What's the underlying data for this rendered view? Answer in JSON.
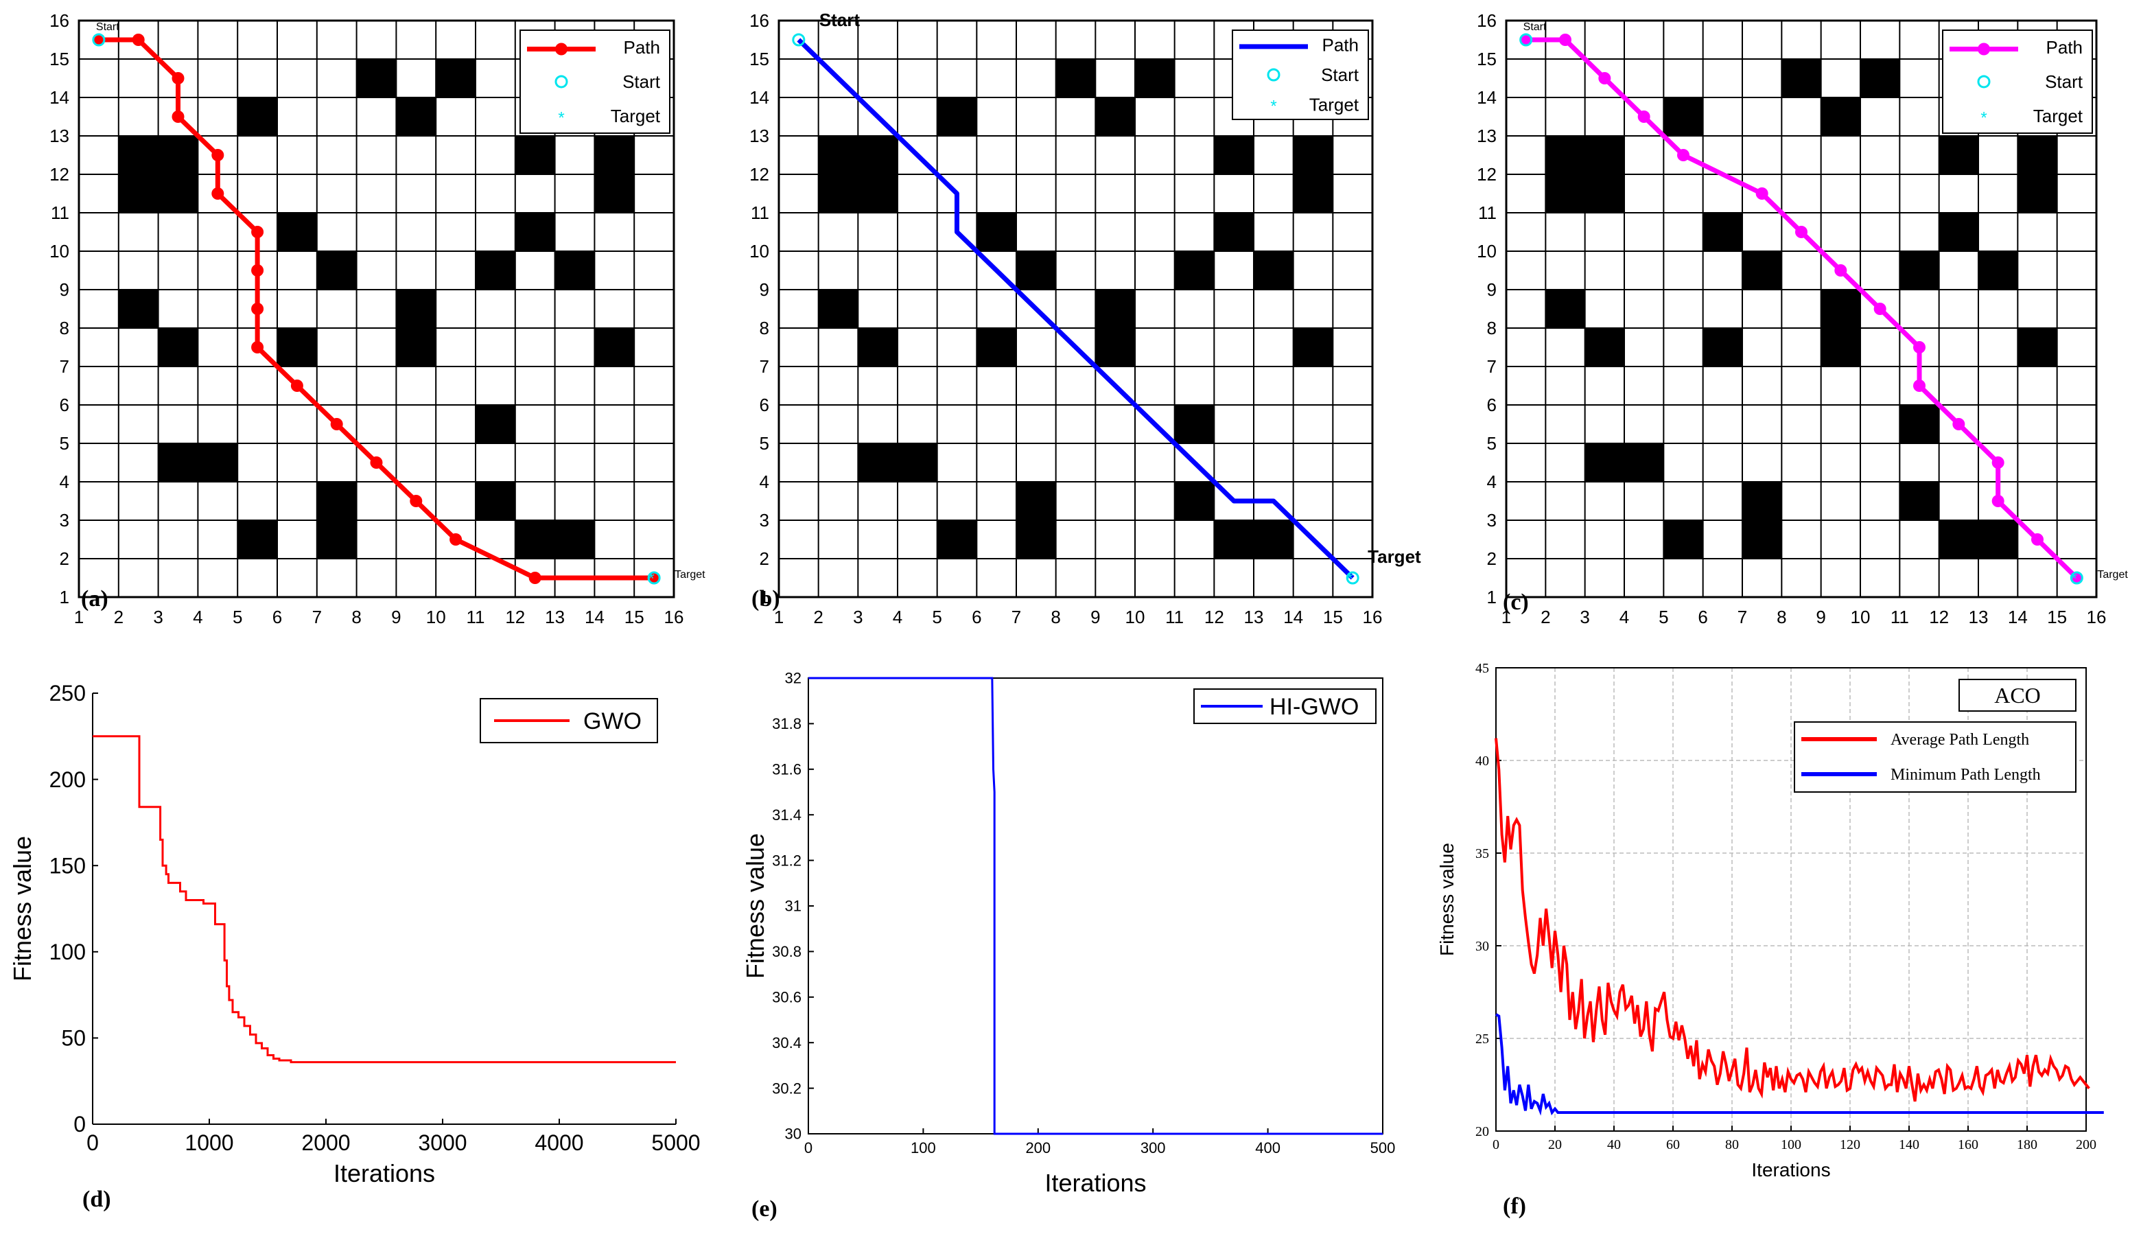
{
  "chart_data": [
    {
      "id": "a",
      "type": "grid_path",
      "panel_label": "(a)",
      "xlim": [
        1,
        16
      ],
      "ylim": [
        1,
        16
      ],
      "ticks": [
        1,
        2,
        3,
        4,
        5,
        6,
        7,
        8,
        9,
        10,
        11,
        12,
        13,
        14,
        15,
        16
      ],
      "obstacles": [
        [
          2,
          11,
          2,
          2
        ],
        [
          8,
          14,
          1,
          1
        ],
        [
          10,
          14,
          1,
          1
        ],
        [
          5,
          13,
          1,
          1
        ],
        [
          9,
          13,
          1,
          1
        ],
        [
          12,
          12,
          1,
          1
        ],
        [
          14,
          11,
          1,
          2
        ],
        [
          6,
          10,
          1,
          1
        ],
        [
          12,
          10,
          1,
          1
        ],
        [
          7,
          9,
          1,
          1
        ],
        [
          11,
          9,
          1,
          1
        ],
        [
          13,
          9,
          1,
          1
        ],
        [
          2,
          8,
          1,
          1
        ],
        [
          9,
          7,
          1,
          2
        ],
        [
          3,
          7,
          1,
          1
        ],
        [
          6,
          7,
          1,
          1
        ],
        [
          14,
          7,
          1,
          1
        ],
        [
          11,
          5,
          1,
          1
        ],
        [
          3,
          4,
          2,
          1
        ],
        [
          7,
          2,
          1,
          2
        ],
        [
          11,
          3,
          1,
          1
        ],
        [
          5,
          2,
          1,
          1
        ],
        [
          12,
          2,
          2,
          1
        ]
      ],
      "path": [
        [
          1.5,
          15.5
        ],
        [
          2.5,
          15.5
        ],
        [
          3.5,
          14.5
        ],
        [
          3.5,
          13.5
        ],
        [
          4.5,
          12.5
        ],
        [
          4.5,
          11.5
        ],
        [
          5.5,
          10.5
        ],
        [
          5.5,
          9.5
        ],
        [
          5.5,
          8.5
        ],
        [
          5.5,
          7.5
        ],
        [
          6.5,
          6.5
        ],
        [
          7.5,
          5.5
        ],
        [
          8.5,
          4.5
        ],
        [
          9.5,
          3.5
        ],
        [
          10.5,
          2.5
        ],
        [
          12.5,
          1.5
        ],
        [
          15.5,
          1.5
        ]
      ],
      "path_color": "#ff0000",
      "markers": true,
      "start": [
        1.5,
        15.5
      ],
      "target": [
        15.5,
        1.5
      ],
      "start_label": "Start",
      "target_label": "Target",
      "legend": [
        "Path",
        "Start",
        "Target"
      ]
    },
    {
      "id": "b",
      "type": "grid_path",
      "panel_label": "(b)",
      "xlim": [
        1,
        16
      ],
      "ylim": [
        1,
        16
      ],
      "ticks": [
        1,
        2,
        3,
        4,
        5,
        6,
        7,
        8,
        9,
        10,
        11,
        12,
        13,
        14,
        15,
        16
      ],
      "obstacles": [
        [
          2,
          11,
          2,
          2
        ],
        [
          8,
          14,
          1,
          1
        ],
        [
          10,
          14,
          1,
          1
        ],
        [
          5,
          13,
          1,
          1
        ],
        [
          9,
          13,
          1,
          1
        ],
        [
          12,
          12,
          1,
          1
        ],
        [
          14,
          11,
          1,
          2
        ],
        [
          6,
          10,
          1,
          1
        ],
        [
          12,
          10,
          1,
          1
        ],
        [
          7,
          9,
          1,
          1
        ],
        [
          11,
          9,
          1,
          1
        ],
        [
          13,
          9,
          1,
          1
        ],
        [
          2,
          8,
          1,
          1
        ],
        [
          9,
          7,
          1,
          2
        ],
        [
          3,
          7,
          1,
          1
        ],
        [
          6,
          7,
          1,
          1
        ],
        [
          14,
          7,
          1,
          1
        ],
        [
          11,
          5,
          1,
          1
        ],
        [
          3,
          4,
          2,
          1
        ],
        [
          7,
          2,
          1,
          2
        ],
        [
          11,
          3,
          1,
          1
        ],
        [
          5,
          2,
          1,
          1
        ],
        [
          12,
          2,
          2,
          1
        ]
      ],
      "path": [
        [
          1.5,
          15.5
        ],
        [
          5.5,
          11.5
        ],
        [
          5.5,
          10.5
        ],
        [
          12.5,
          3.5
        ],
        [
          13.5,
          3.5
        ],
        [
          15.5,
          1.5
        ]
      ],
      "path_color": "#0000ff",
      "markers": false,
      "start": [
        1.5,
        15.5
      ],
      "target": [
        15.5,
        1.5
      ],
      "start_label": "Start",
      "target_label": "Target",
      "legend": [
        "Path",
        "Start",
        "Target"
      ]
    },
    {
      "id": "c",
      "type": "grid_path",
      "panel_label": "(c)",
      "xlim": [
        1,
        16
      ],
      "ylim": [
        1,
        16
      ],
      "ticks": [
        1,
        2,
        3,
        4,
        5,
        6,
        7,
        8,
        9,
        10,
        11,
        12,
        13,
        14,
        15,
        16
      ],
      "obstacles": [
        [
          2,
          11,
          2,
          2
        ],
        [
          8,
          14,
          1,
          1
        ],
        [
          10,
          14,
          1,
          1
        ],
        [
          5,
          13,
          1,
          1
        ],
        [
          9,
          13,
          1,
          1
        ],
        [
          12,
          12,
          1,
          1
        ],
        [
          14,
          11,
          1,
          2
        ],
        [
          6,
          10,
          1,
          1
        ],
        [
          12,
          10,
          1,
          1
        ],
        [
          7,
          9,
          1,
          1
        ],
        [
          11,
          9,
          1,
          1
        ],
        [
          13,
          9,
          1,
          1
        ],
        [
          2,
          8,
          1,
          1
        ],
        [
          9,
          7,
          1,
          2
        ],
        [
          3,
          7,
          1,
          1
        ],
        [
          6,
          7,
          1,
          1
        ],
        [
          14,
          7,
          1,
          1
        ],
        [
          11,
          5,
          1,
          1
        ],
        [
          3,
          4,
          2,
          1
        ],
        [
          7,
          2,
          1,
          2
        ],
        [
          11,
          3,
          1,
          1
        ],
        [
          5,
          2,
          1,
          1
        ],
        [
          12,
          2,
          2,
          1
        ]
      ],
      "path": [
        [
          1.5,
          15.5
        ],
        [
          2.5,
          15.5
        ],
        [
          3.5,
          14.5
        ],
        [
          4.5,
          13.5
        ],
        [
          5.5,
          12.5
        ],
        [
          7.5,
          11.5
        ],
        [
          8.5,
          10.5
        ],
        [
          9.5,
          9.5
        ],
        [
          10.5,
          8.5
        ],
        [
          11.5,
          7.5
        ],
        [
          11.5,
          6.5
        ],
        [
          12.5,
          5.5
        ],
        [
          13.5,
          4.5
        ],
        [
          13.5,
          3.5
        ],
        [
          14.5,
          2.5
        ],
        [
          15.5,
          1.5
        ]
      ],
      "path_color": "#ff00ff",
      "markers": true,
      "start": [
        1.5,
        15.5
      ],
      "target": [
        15.5,
        1.5
      ],
      "start_label": "Start",
      "target_label": "Target",
      "legend": [
        "Path",
        "Start",
        "Target"
      ]
    },
    {
      "id": "d",
      "type": "line",
      "panel_label": "(d)",
      "xlabel": "Iterations",
      "ylabel": "Fitness value",
      "xlim": [
        0,
        5000
      ],
      "ylim": [
        0,
        250
      ],
      "xticks": [
        0,
        1000,
        2000,
        3000,
        4000,
        5000
      ],
      "yticks": [
        0,
        50,
        100,
        150,
        200,
        250
      ],
      "legend_label": "GWO",
      "series": [
        {
          "name": "GWO",
          "color": "#ff0000",
          "x": [
            0,
            400,
            400,
            580,
            580,
            600,
            630,
            650,
            700,
            750,
            800,
            850,
            950,
            1050,
            1100,
            1130,
            1150,
            1170,
            1200,
            1250,
            1300,
            1350,
            1400,
            1450,
            1500,
            1550,
            1600,
            1700,
            5000
          ],
          "y": [
            225,
            225,
            184,
            184,
            165,
            150,
            145,
            140,
            140,
            135,
            130,
            130,
            128,
            116,
            116,
            95,
            80,
            72,
            65,
            62,
            57,
            52,
            47,
            44,
            40,
            38,
            37,
            36,
            36
          ]
        }
      ]
    },
    {
      "id": "e",
      "type": "line",
      "panel_label": "(e)",
      "xlabel": "Iterations",
      "ylabel": "Fitness value",
      "xlim": [
        0,
        500
      ],
      "ylim": [
        30,
        32
      ],
      "xticks": [
        0,
        100,
        200,
        300,
        400,
        500
      ],
      "yticks": [
        30,
        30.2,
        30.4,
        30.6,
        30.8,
        31,
        31.2,
        31.4,
        31.6,
        31.8,
        32
      ],
      "legend_label": "HI-GWO",
      "series": [
        {
          "name": "HI-GWO",
          "color": "#0000ff",
          "x": [
            0,
            160,
            161,
            162,
            162,
            500
          ],
          "y": [
            32,
            32,
            31.6,
            31.5,
            30,
            30
          ]
        }
      ]
    },
    {
      "id": "f",
      "type": "line",
      "panel_label": "(f)",
      "xlabel": "Iterations",
      "ylabel": "Fitness value",
      "title_box": "ACO",
      "xlim": [
        0,
        200
      ],
      "ylim": [
        20,
        45
      ],
      "xticks": [
        0,
        20,
        40,
        60,
        80,
        100,
        120,
        140,
        160,
        180,
        200
      ],
      "yticks": [
        20,
        25,
        30,
        35,
        40,
        45
      ],
      "grid": true,
      "series": [
        {
          "name": "Average Path Length",
          "color": "#ff0000",
          "y": [
            41.2,
            39.5,
            36,
            34.5,
            37,
            35.2,
            36.5,
            36.8,
            36.5,
            33,
            31.5,
            30.2,
            29,
            28.5,
            29.5,
            31.5,
            30,
            32,
            30.5,
            28.8,
            30.8,
            29.5,
            27.5,
            30,
            29,
            26,
            27.5,
            25.5,
            26.5,
            28.2,
            25,
            26.2,
            27,
            24.8,
            26.5,
            27.8,
            26,
            25.2,
            28,
            27,
            26.5,
            26.2,
            27.5,
            27.9,
            26.6,
            26.8,
            27.3,
            25.8,
            26.8,
            25.1,
            25.5,
            27,
            25.2,
            24.3,
            26.6,
            26.5,
            27,
            27.5,
            26,
            25.1,
            25,
            25.9,
            24.9,
            25.7,
            25,
            23.9,
            24.6,
            23.5,
            24.9,
            22.8,
            23.6,
            23.2,
            24.4,
            23.8,
            23.5,
            22.5,
            23.1,
            24.3,
            23.6,
            22.7,
            23.3,
            23.9,
            22.5,
            22.3,
            23.1,
            24.5,
            22.1,
            22.5,
            23.3,
            22.3,
            22,
            23.7,
            22.9,
            23.4,
            22.2,
            23.5,
            22.3,
            22.8,
            22.1,
            23.2,
            22.8,
            22.6,
            23,
            23.1,
            22.8,
            22.1,
            23.2,
            22.9,
            22.6,
            22.4,
            23.2,
            23.5,
            22.3,
            22.9,
            23.2,
            22.4,
            22.5,
            22.7,
            23.4,
            22.2,
            22.3,
            23.3,
            23.6,
            23.2,
            23.4,
            22.7,
            23.2,
            22.7,
            22.4,
            23.4,
            23.2,
            23,
            22.3,
            22.5,
            22.5,
            23.6,
            22.1,
            23.1,
            22.8,
            22.3,
            23.5,
            22.5,
            21.6,
            23.1,
            22.2,
            22.5,
            22.2,
            22.8,
            22.3,
            23.2,
            23.3,
            22.8,
            22,
            23.5,
            23.3,
            22.2,
            22.3,
            22.6,
            23,
            22.3,
            22.4,
            22.3,
            22.8,
            23.5,
            22.4,
            22.1,
            23,
            23.1,
            23.3,
            22.3,
            23.3,
            22.7,
            22.6,
            23.1,
            23.5,
            22.7,
            22.9,
            23.8,
            23.6,
            23.1,
            24.1,
            22.4,
            23.5,
            24.1,
            23.2,
            23,
            23.3,
            23.1,
            23.9,
            23.5,
            23.3,
            22.8,
            23,
            23.5,
            23.4,
            22.8,
            22.5,
            22.7,
            22.9,
            22.7,
            22.5,
            22.3
          ]
        },
        {
          "name": "Minimum Path Length",
          "color": "#0000ff",
          "y": [
            26.3,
            26.2,
            24.5,
            22.2,
            23.5,
            21.5,
            22.2,
            21.4,
            22.5,
            21.9,
            21.1,
            22.5,
            21.2,
            21.6,
            21.5,
            21.1,
            22,
            21.3,
            21.5,
            21,
            21.2,
            21,
            21,
            21,
            21,
            21,
            21,
            21,
            21,
            21,
            21,
            21,
            21,
            21,
            21,
            21,
            21,
            21,
            21,
            21,
            21,
            21,
            21,
            21,
            21,
            21,
            21,
            21,
            21,
            21,
            21,
            21,
            21,
            21,
            21,
            21,
            21,
            21,
            21,
            21,
            21,
            21,
            21,
            21,
            21,
            21,
            21,
            21,
            21,
            21,
            21,
            21,
            21,
            21,
            21,
            21,
            21,
            21,
            21,
            21,
            21,
            21,
            21,
            21,
            21,
            21,
            21,
            21,
            21,
            21,
            21,
            21,
            21,
            21,
            21,
            21,
            21,
            21,
            21,
            21,
            21,
            21,
            21,
            21,
            21,
            21,
            21,
            21,
            21,
            21,
            21,
            21,
            21,
            21,
            21,
            21,
            21,
            21,
            21,
            21,
            21,
            21,
            21,
            21,
            21,
            21,
            21,
            21,
            21,
            21,
            21,
            21,
            21,
            21,
            21,
            21,
            21,
            21,
            21,
            21,
            21,
            21,
            21,
            21,
            21,
            21,
            21,
            21,
            21,
            21,
            21,
            21,
            21,
            21,
            21,
            21,
            21,
            21,
            21,
            21,
            21,
            21,
            21,
            21,
            21,
            21,
            21,
            21,
            21,
            21,
            21,
            21,
            21,
            21,
            21,
            21,
            21,
            21,
            21,
            21,
            21,
            21,
            21,
            21,
            21,
            21,
            21,
            21,
            21,
            21,
            21,
            21,
            21,
            21,
            21,
            21,
            21,
            21,
            21,
            21,
            21,
            21,
            21,
            21,
            21,
            21,
            21
          ]
        }
      ]
    }
  ]
}
